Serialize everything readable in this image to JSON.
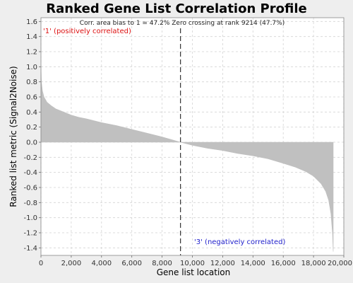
{
  "chart_data": {
    "type": "area",
    "title": "Ranked Gene List Correlation Profile",
    "xlabel": "Gene list location",
    "ylabel": "Ranked list metric (Signal2Noise)",
    "xlim": [
      0,
      20000
    ],
    "ylim": [
      -1.5,
      1.65
    ],
    "x_ticks": [
      0,
      2000,
      4000,
      6000,
      8000,
      10000,
      12000,
      14000,
      16000,
      18000,
      20000
    ],
    "x_tick_labels": [
      "0",
      "2,000",
      "4,000",
      "6,000",
      "8,000",
      "10,000",
      "12,000",
      "14,000",
      "16,000",
      "18,000",
      "20,000"
    ],
    "y_ticks": [
      1.6,
      1.4,
      1.2,
      1.0,
      0.8,
      0.6,
      0.4,
      0.2,
      0.0,
      -0.2,
      -0.4,
      -0.6,
      -0.8,
      -1.0,
      -1.2,
      -1.4
    ],
    "y_tick_labels": [
      "1.6",
      "1.4",
      "1.2",
      "1.0",
      "0.8",
      "0.6",
      "0.4",
      "0.2",
      "0.0",
      "-0.2",
      "-0.4",
      "-0.6",
      "-0.8",
      "-1.0",
      "-1.2",
      "-1.4"
    ],
    "grid": true,
    "series": [
      {
        "x": [
          0,
          30,
          100,
          200,
          400,
          700,
          1000,
          1500,
          2000,
          2500,
          3000,
          4000,
          5000,
          6000,
          7000,
          8000,
          9214,
          10000,
          11000,
          12000,
          13000,
          14000,
          15000,
          16000,
          16800,
          17500,
          18000,
          18500,
          18800,
          19000,
          19150,
          19250,
          19300
        ],
        "y": [
          1.0,
          0.8,
          0.68,
          0.6,
          0.53,
          0.48,
          0.44,
          0.4,
          0.36,
          0.33,
          0.31,
          0.26,
          0.22,
          0.17,
          0.12,
          0.07,
          0.0,
          -0.04,
          -0.08,
          -0.11,
          -0.15,
          -0.18,
          -0.22,
          -0.28,
          -0.33,
          -0.39,
          -0.45,
          -0.55,
          -0.65,
          -0.77,
          -0.95,
          -1.2,
          -1.45
        ],
        "color": "#c0c0c0"
      }
    ],
    "zero_crossing": 9214,
    "annotation": "Corr. area bias to 1 = 47.2% Zero crossing at rank 9214 (47.7%)",
    "positive_label": "'1' (positively correlated)",
    "negative_label": "'3' (negatively correlated)",
    "positive_color": "#dd1111",
    "negative_color": "#2222cc"
  }
}
